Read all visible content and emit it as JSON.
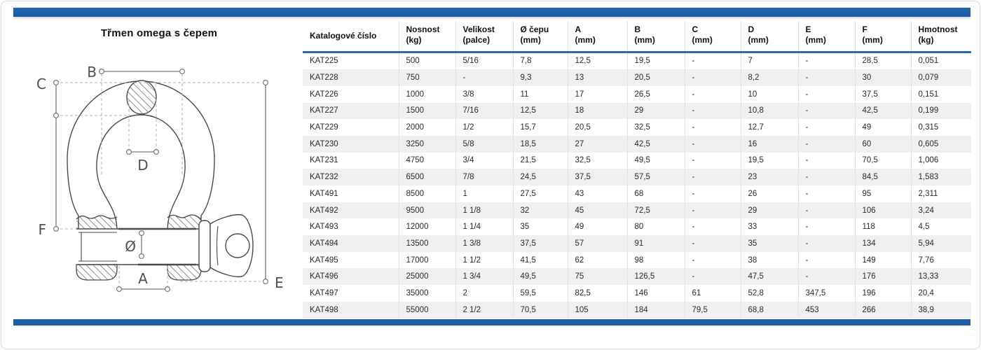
{
  "title": "Třmen omega s čepem",
  "accent_color": "#1f5da6",
  "table": {
    "columns": [
      {
        "label": "Katalogové číslo",
        "sub": ""
      },
      {
        "label": "Nosnost",
        "sub": "(kg)"
      },
      {
        "label": "Velikost",
        "sub": "(palce)"
      },
      {
        "label": "Ø čepu",
        "sub": "(mm)"
      },
      {
        "label": "A",
        "sub": "(mm)"
      },
      {
        "label": "B",
        "sub": "(mm)"
      },
      {
        "label": "C",
        "sub": "(mm)"
      },
      {
        "label": "D",
        "sub": "(mm)"
      },
      {
        "label": "E",
        "sub": "(mm)"
      },
      {
        "label": "F",
        "sub": "(mm)"
      },
      {
        "label": "Hmotnost",
        "sub": "(kg)"
      }
    ],
    "rows": [
      [
        "KAT225",
        "500",
        "5/16",
        "7,8",
        "12,5",
        "19,5",
        "-",
        "7",
        "-",
        "28,5",
        "0,051"
      ],
      [
        "KAT228",
        "750",
        "-",
        "9,3",
        "13",
        "20,5",
        "-",
        "8,2",
        "-",
        "30",
        "0,079"
      ],
      [
        "KAT226",
        "1000",
        "3/8",
        "11",
        "17",
        "26,5",
        "-",
        "10",
        "-",
        "37,5",
        "0,151"
      ],
      [
        "KAT227",
        "1500",
        "7/16",
        "12,5",
        "18",
        "29",
        "-",
        "10,8",
        "-",
        "42,5",
        "0,199"
      ],
      [
        "KAT229",
        "2000",
        "1/2",
        "15,7",
        "20,5",
        "32,5",
        "-",
        "12,7",
        "-",
        "49",
        "0,315"
      ],
      [
        "KAT230",
        "3250",
        "5/8",
        "18,5",
        "27",
        "42,5",
        "-",
        "16",
        "-",
        "60",
        "0,605"
      ],
      [
        "KAT231",
        "4750",
        "3/4",
        "21,5",
        "32,5",
        "49,5",
        "-",
        "19,5",
        "-",
        "70,5",
        "1,006"
      ],
      [
        "KAT232",
        "6500",
        "7/8",
        "24,5",
        "37,5",
        "57,5",
        "-",
        "23",
        "-",
        "84,5",
        "1,583"
      ],
      [
        "KAT491",
        "8500",
        "1",
        "27,5",
        "43",
        "68",
        "-",
        "26",
        "-",
        "95",
        "2,311"
      ],
      [
        "KAT492",
        "9500",
        "1 1/8",
        "32",
        "45",
        "72,5",
        "-",
        "29",
        "-",
        "106",
        "3,24"
      ],
      [
        "KAT493",
        "12000",
        "1 1/4",
        "35",
        "49",
        "80",
        "-",
        "33",
        "-",
        "118",
        "4,5"
      ],
      [
        "KAT494",
        "13500",
        "1 3/8",
        "37,5",
        "57",
        "91",
        "-",
        "35",
        "-",
        "134",
        "5,94"
      ],
      [
        "KAT495",
        "17000",
        "1 1/2",
        "41,5",
        "62",
        "98",
        "-",
        "38",
        "-",
        "149",
        "7,76"
      ],
      [
        "KAT496",
        "25000",
        "1 3/4",
        "49,5",
        "75",
        "126,5",
        "-",
        "47,5",
        "-",
        "176",
        "13,33"
      ],
      [
        "KAT497",
        "35000",
        "2",
        "59,5",
        "82,5",
        "146",
        "61",
        "52,8",
        "347,5",
        "196",
        "20,4"
      ],
      [
        "KAT498",
        "55000",
        "2 1/2",
        "70,5",
        "105",
        "184",
        "79,5",
        "68,8",
        "453",
        "266",
        "38,9"
      ]
    ]
  },
  "diagram": {
    "labels": {
      "b": "B",
      "c": "C",
      "d": "D",
      "f": "F",
      "diameter": "Ø",
      "a": "A",
      "e": "E"
    }
  }
}
